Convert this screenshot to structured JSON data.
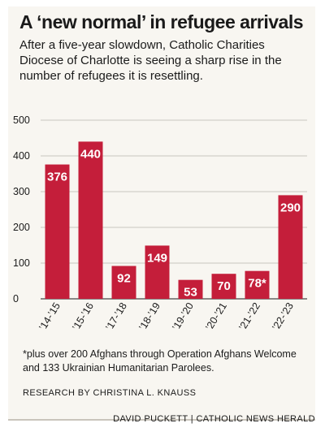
{
  "header": {
    "title": "A ‘new normal’ in refugee arrivals",
    "subtitle": "After a five-year slowdown, Catholic Charities Diocese of Charlotte is seeing a sharp rise in the number of refugees it is resettling."
  },
  "chart_data": {
    "type": "bar",
    "categories": [
      "’14-’15",
      "’15-’16",
      "’17-’18",
      "’18-’19",
      "’19-’20",
      "’20-’21",
      "’21-’22",
      "’22-’23"
    ],
    "values": [
      376,
      440,
      92,
      149,
      53,
      70,
      78,
      290
    ],
    "value_labels": [
      "376",
      "440",
      "92",
      "149",
      "53",
      "70",
      "78*",
      "290"
    ],
    "yticks": [
      0,
      100,
      200,
      300,
      400,
      500
    ],
    "ylim": [
      0,
      500
    ],
    "grid": true,
    "bar_color": "#c41e3a"
  },
  "footer": {
    "footnote": "*plus over 200 Afghans through Operation Afghans Welcome and 133 Ukrainian Humanitarian Parolees.",
    "research": "RESEARCH BY CHRISTINA L. KNAUSS",
    "byline": "DAVID PUCKETT | CATHOLIC NEWS HERALD"
  }
}
